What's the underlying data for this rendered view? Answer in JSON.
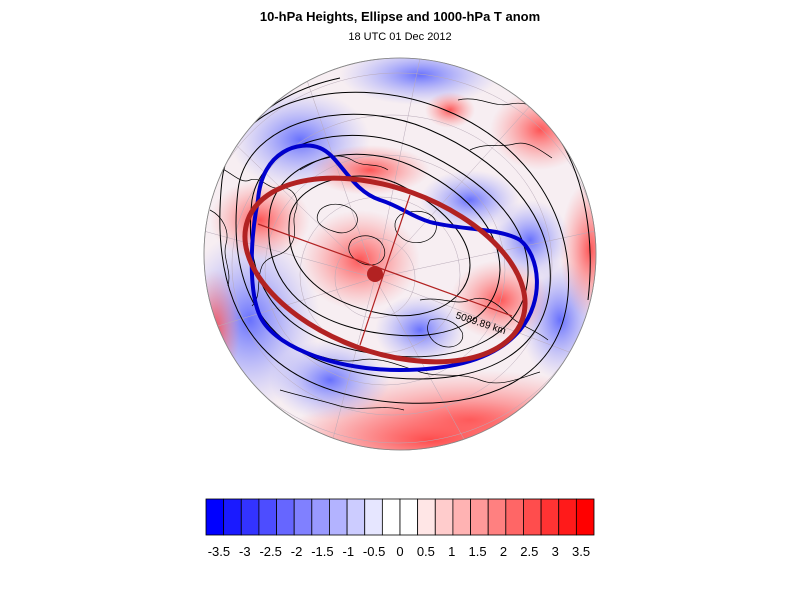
{
  "header": {
    "title": "10-hPa Heights, Ellipse and 1000-hPa T anom",
    "subtitle": "18 UTC 01 Dec 2012"
  },
  "map": {
    "projection": "orthographic, north polar view",
    "distance_label": "5089.89 km",
    "ellipse_color": "#b22222",
    "contour_highlight_color": "#0000cd",
    "contour_color": "#000000",
    "coastline_color": "#000000"
  },
  "colorbar": {
    "tick_labels": [
      "-3.5",
      "-3",
      "-2.5",
      "-2",
      "-1.5",
      "-1",
      "-0.5",
      "0",
      "0.5",
      "1",
      "1.5",
      "2",
      "2.5",
      "3",
      "3.5"
    ],
    "colors": [
      "#0000ff",
      "#1a1aff",
      "#3333ff",
      "#4d4dff",
      "#6666ff",
      "#8080ff",
      "#9999ff",
      "#b3b3ff",
      "#ccccff",
      "#e6e6ff",
      "#ffffff",
      "#ffffff",
      "#ffe6e6",
      "#ffcccc",
      "#ffb3b3",
      "#ff9999",
      "#ff8080",
      "#ff6666",
      "#ff4d4d",
      "#ff3333",
      "#ff1a1a",
      "#ff0000"
    ]
  }
}
